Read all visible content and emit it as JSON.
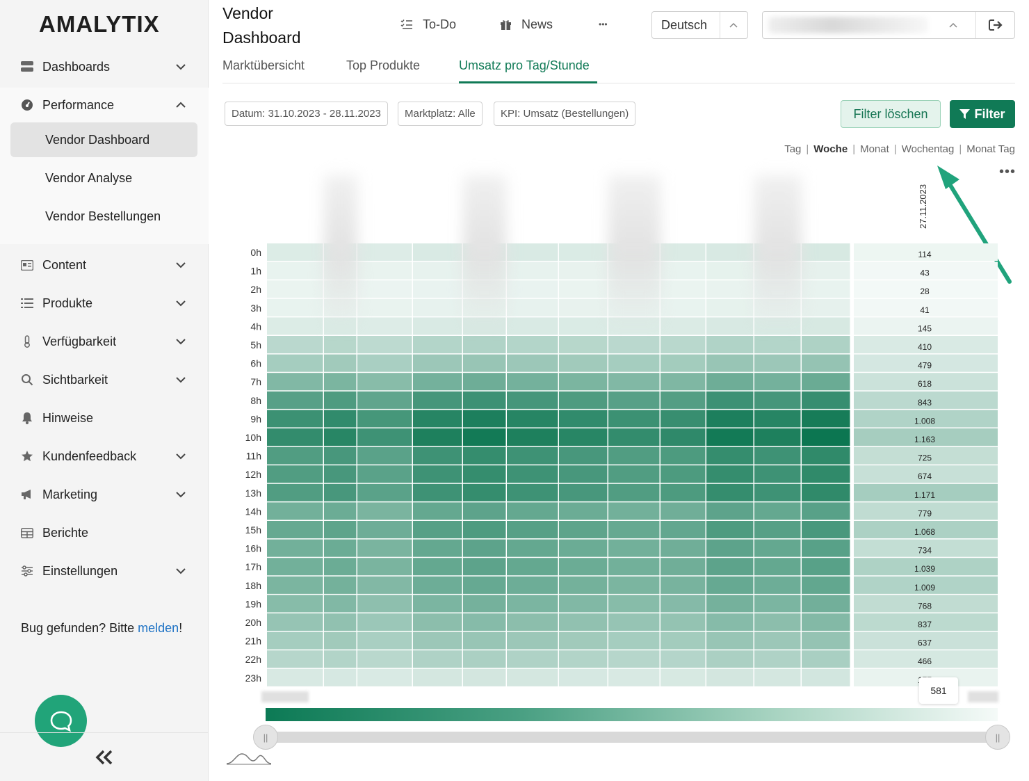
{
  "brand": {
    "logo": "AMALYTIX"
  },
  "sidebar": {
    "items": [
      {
        "label": "Dashboards"
      },
      {
        "label": "Performance"
      },
      {
        "label": "Content"
      },
      {
        "label": "Produkte"
      },
      {
        "label": "Verfügbarkeit"
      },
      {
        "label": "Sichtbarkeit"
      },
      {
        "label": "Hinweise"
      },
      {
        "label": "Kundenfeedback"
      },
      {
        "label": "Marketing"
      },
      {
        "label": "Berichte"
      },
      {
        "label": "Einstellungen"
      }
    ],
    "performance_sub": [
      {
        "label": "Vendor Dashboard"
      },
      {
        "label": "Vendor Analyse"
      },
      {
        "label": "Vendor Bestellungen"
      }
    ],
    "bug_text": "Bug gefunden? Bitte ",
    "bug_link": "melden",
    "bug_suffix": "!"
  },
  "header": {
    "title_line1": "Vendor",
    "title_line2": "Dashboard",
    "todo": "To-Do",
    "news": "News",
    "more": "•••",
    "language": "Deutsch"
  },
  "tabs": [
    {
      "label": "Marktübersicht"
    },
    {
      "label": "Top Produkte"
    },
    {
      "label": "Umsatz pro Tag/Stunde"
    }
  ],
  "filters": {
    "date": "Datum: 31.10.2023 - 28.11.2023",
    "marketplace": "Marktplatz: Alle",
    "kpi": "KPI: Umsatz (Bestellungen)",
    "clear": "Filter löschen",
    "filter": "Filter"
  },
  "granularity": {
    "options": [
      "Tag",
      "Woche",
      "Monat",
      "Wochentag",
      "Monat Tag"
    ],
    "selected": "Woche"
  },
  "colors": {
    "accent": "#107a56",
    "heat_max": "#0b7550",
    "heat_min": "#f5faf8"
  },
  "chart_data": {
    "type": "heatmap",
    "rows": [
      "0h",
      "1h",
      "2h",
      "3h",
      "4h",
      "5h",
      "6h",
      "7h",
      "8h",
      "9h",
      "10h",
      "11h",
      "12h",
      "13h",
      "14h",
      "15h",
      "16h",
      "17h",
      "18h",
      "19h",
      "20h",
      "21h",
      "22h",
      "23h"
    ],
    "visible_column": "27.11.2023",
    "visible_column_values": [
      "114",
      "43",
      "28",
      "41",
      "145",
      "410",
      "479",
      "618",
      "843",
      "1.008",
      "1.163",
      "725",
      "674",
      "1.171",
      "779",
      "1.068",
      "734",
      "1.039",
      "1.009",
      "768",
      "837",
      "637",
      "466",
      "177"
    ],
    "tooltip_value": "581"
  }
}
